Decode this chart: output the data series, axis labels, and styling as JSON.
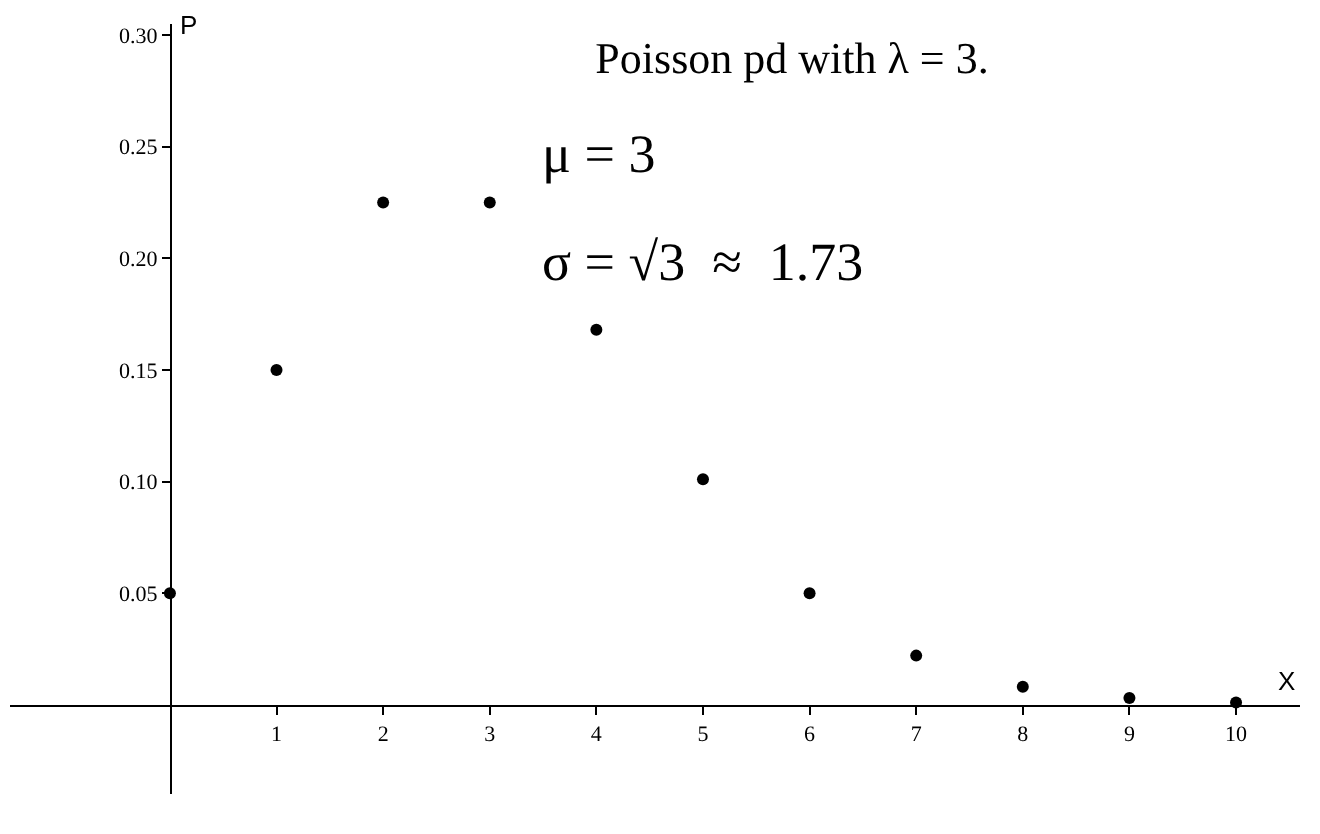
{
  "chart_data": {
    "type": "scatter",
    "title": "Poisson pd with λ = 3.",
    "xlabel": "X",
    "ylabel": "P",
    "x": [
      0,
      1,
      2,
      3,
      4,
      5,
      6,
      7,
      8,
      9,
      10
    ],
    "values": [
      0.05,
      0.15,
      0.225,
      0.225,
      0.168,
      0.101,
      0.05,
      0.022,
      0.008,
      0.003,
      0.001
    ],
    "color": "#000000",
    "marker": "circle",
    "grid": false,
    "xlim": [
      -1.5,
      10.6
    ],
    "xticks": [
      1,
      2,
      3,
      4,
      5,
      6,
      7,
      8,
      9,
      10
    ],
    "ylim": [
      -0.04,
      0.305
    ],
    "yticks": [
      {
        "value": 0.05,
        "label": "0.05"
      },
      {
        "value": 0.1,
        "label": "0.10"
      },
      {
        "value": 0.15,
        "label": "0.15"
      },
      {
        "value": 0.2,
        "label": "0.20"
      },
      {
        "value": 0.25,
        "label": "0.25"
      },
      {
        "value": 0.3,
        "label": "0.30"
      }
    ],
    "annotations": [
      "μ = 3",
      "σ = √3  ≈  1.73"
    ]
  }
}
